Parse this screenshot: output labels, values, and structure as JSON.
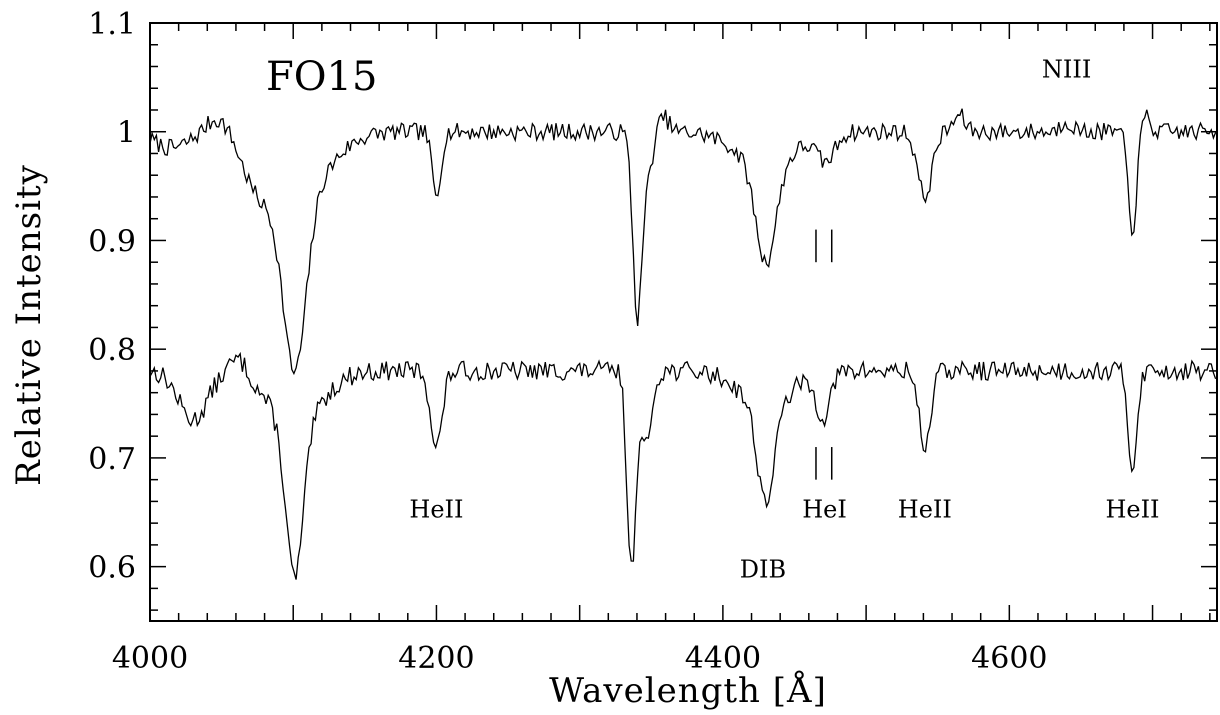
{
  "chart_data": {
    "type": "line",
    "title": "",
    "xlabel": "Wavelength [Å]",
    "ylabel": "Relative Intensity",
    "xlim": [
      4000,
      4745
    ],
    "ylim": [
      0.55,
      1.1
    ],
    "grid": false,
    "x_ticks": [
      4000,
      4200,
      4400,
      4600
    ],
    "x_tick_labels": [
      "4000",
      "4200",
      "4400",
      "4600"
    ],
    "y_ticks": [
      0.6,
      0.7,
      0.8,
      0.9,
      1.0,
      1.1
    ],
    "y_tick_labels": [
      "0.6",
      "0.7",
      "0.8",
      "0.9",
      "1",
      "1.1"
    ],
    "color": "#000000",
    "star_label": "FO15",
    "annotations": [
      {
        "text": "NIII",
        "x": 4640,
        "y": 1.05
      },
      {
        "text": "HeII",
        "x": 4200,
        "y": 0.645
      },
      {
        "text": "DIB",
        "x": 4428,
        "y": 0.59
      },
      {
        "text": "HeI",
        "x": 4471,
        "y": 0.645
      },
      {
        "text": "HeII",
        "x": 4541,
        "y": 0.645
      },
      {
        "text": "HeII",
        "x": 4686,
        "y": 0.645
      }
    ],
    "line_markers": [
      {
        "x": 4465,
        "y_from": 0.88,
        "y_to": 0.91
      },
      {
        "x": 4476,
        "y_from": 0.88,
        "y_to": 0.91
      },
      {
        "x": 4465,
        "y_from": 0.68,
        "y_to": 0.71
      },
      {
        "x": 4476,
        "y_from": 0.68,
        "y_to": 0.71
      }
    ],
    "series": [
      {
        "continuum": 1.0,
        "noise": 0.008,
        "seed": 7,
        "features": [
          {
            "x": 4015,
            "depth": 0.015,
            "width": 12
          },
          {
            "x": 4048,
            "depth": -0.015,
            "width": 8
          },
          {
            "x": 4075,
            "depth": 0.03,
            "width": 10
          },
          {
            "x": 4101,
            "depth": 0.16,
            "width": 8
          },
          {
            "x": 4101,
            "depth": 0.06,
            "width": 22
          },
          {
            "x": 4200,
            "depth": 0.06,
            "width": 3
          },
          {
            "x": 4340,
            "depth": 0.14,
            "width": 3
          },
          {
            "x": 4345,
            "depth": 0.05,
            "width": 5
          },
          {
            "x": 4358,
            "depth": -0.015,
            "width": 4
          },
          {
            "x": 4430,
            "depth": 0.09,
            "width": 7
          },
          {
            "x": 4430,
            "depth": 0.03,
            "width": 20
          },
          {
            "x": 4472,
            "depth": 0.025,
            "width": 6
          },
          {
            "x": 4541,
            "depth": 0.06,
            "width": 5
          },
          {
            "x": 4565,
            "depth": -0.015,
            "width": 4
          },
          {
            "x": 4640,
            "depth": -0.01,
            "width": 4
          },
          {
            "x": 4686,
            "depth": 0.09,
            "width": 3
          },
          {
            "x": 4695,
            "depth": -0.015,
            "width": 3
          }
        ]
      },
      {
        "continuum": 0.78,
        "noise": 0.009,
        "seed": 13,
        "features": [
          {
            "x": 4030,
            "depth": 0.045,
            "width": 10
          },
          {
            "x": 4062,
            "depth": -0.015,
            "width": 6
          },
          {
            "x": 4101,
            "depth": 0.14,
            "width": 6
          },
          {
            "x": 4101,
            "depth": 0.05,
            "width": 18
          },
          {
            "x": 4200,
            "depth": 0.07,
            "width": 4
          },
          {
            "x": 4336,
            "depth": 0.18,
            "width": 3
          },
          {
            "x": 4346,
            "depth": 0.07,
            "width": 4
          },
          {
            "x": 4430,
            "depth": 0.09,
            "width": 6
          },
          {
            "x": 4430,
            "depth": 0.03,
            "width": 18
          },
          {
            "x": 4470,
            "depth": 0.04,
            "width": 5
          },
          {
            "x": 4541,
            "depth": 0.07,
            "width": 4
          },
          {
            "x": 4686,
            "depth": 0.09,
            "width": 3
          }
        ]
      }
    ]
  }
}
